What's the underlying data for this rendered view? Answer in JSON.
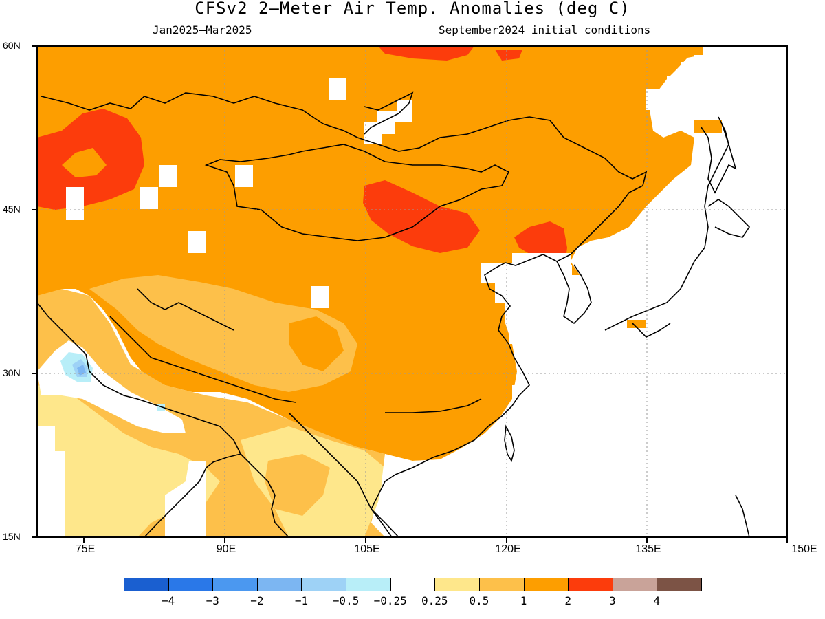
{
  "title": "CFSv2 2–Meter Air Temp. Anomalies (deg C)",
  "subtitle_left": "Jan2025–Mar2025",
  "subtitle_right": "September2024 initial conditions",
  "map": {
    "lon_range": [
      70,
      150
    ],
    "lat_range": [
      15,
      60
    ],
    "lat_labels": [
      "60N",
      "45N",
      "30N",
      "15N"
    ],
    "lon_labels": [
      "75E",
      "90E",
      "105E",
      "120E",
      "135E",
      "150E"
    ],
    "gridlines": "dotted",
    "legend_position": "bottom"
  },
  "colorbar": {
    "labels": [
      "−4",
      "−3",
      "−2",
      "−1",
      "−0.5",
      "−0.25",
      "0.25",
      "0.5",
      "1",
      "2",
      "3",
      "4"
    ],
    "colors": [
      "#1a5fd0",
      "#2a78e8",
      "#4b98f0",
      "#7cb6f2",
      "#9ed2f6",
      "#b8eef8",
      "#ffffff",
      "#fee78b",
      "#fdc04a",
      "#fd9e00",
      "#fc3c0c",
      "#c9a399",
      "#7c5345"
    ]
  },
  "chart_data": {
    "type": "heatmap",
    "variable": "2-Meter Air Temp. Anomalies (deg C)",
    "period": "Jan2025–Mar2025",
    "initial_conditions": "September2024",
    "xlim": [
      70,
      150
    ],
    "ylim": [
      15,
      60
    ],
    "levels": [
      -4,
      -3,
      -2,
      -1,
      -0.5,
      -0.25,
      0.25,
      0.5,
      1,
      2,
      3,
      4
    ],
    "regions": [
      {
        "area": "Mongolia, northern and central China, Siberia",
        "anomaly_range": [
          1,
          2
        ]
      },
      {
        "area": "Kazakhstan (north-west)",
        "anomaly_range": [
          2,
          3
        ]
      },
      {
        "area": "Inner Mongolia / Gobi",
        "anomaly_range": [
          2,
          3
        ]
      },
      {
        "area": "North Korea / Liaoning border",
        "anomaly_range": [
          2,
          3
        ]
      },
      {
        "area": "Tibetan Plateau south / Sichuan / Yunnan",
        "anomaly_range": [
          0.5,
          1
        ]
      },
      {
        "area": "Southern China coast / Indochina",
        "anomaly_range": [
          0.25,
          1
        ]
      },
      {
        "area": "North-west India / Pakistan",
        "anomaly_range": [
          -1,
          0.25
        ]
      },
      {
        "area": "Central India",
        "anomaly_range": [
          0.25,
          1
        ]
      },
      {
        "area": "Korea / Japan / ocean",
        "anomaly_range": [
          -0.25,
          0.25
        ]
      }
    ]
  }
}
